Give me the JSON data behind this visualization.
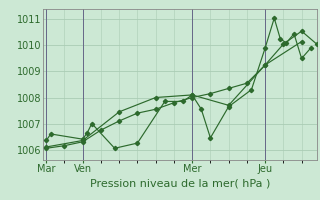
{
  "bg_color": "#cce8d4",
  "grid_color": "#aaccb4",
  "line_color": "#2d6a2d",
  "marker_color": "#2d6a2d",
  "ylabel_ticks": [
    1006,
    1007,
    1008,
    1009,
    1010,
    1011
  ],
  "ylim": [
    1005.6,
    1011.4
  ],
  "xlabel": "Pression niveau de la mer( hPa )",
  "day_labels": [
    "Mar",
    "Ven",
    "Mer",
    "Jeu"
  ],
  "day_positions": [
    0,
    24,
    96,
    144
  ],
  "xlim": [
    -2,
    178
  ],
  "series1_x": [
    0,
    3,
    24,
    27,
    30,
    45,
    60,
    78,
    90,
    96,
    102,
    108,
    120,
    135,
    144,
    150,
    154,
    158,
    163,
    168,
    174
  ],
  "series1_y": [
    1006.35,
    1006.6,
    1006.4,
    1006.65,
    1007.0,
    1006.05,
    1006.25,
    1007.85,
    1007.85,
    1008.1,
    1007.55,
    1006.45,
    1007.65,
    1008.3,
    1009.9,
    1011.05,
    1010.25,
    1010.1,
    1010.45,
    1009.5,
    1009.9
  ],
  "series2_x": [
    0,
    12,
    24,
    36,
    48,
    60,
    72,
    84,
    96,
    108,
    120,
    132,
    144,
    156,
    168,
    178
  ],
  "series2_y": [
    1006.05,
    1006.15,
    1006.3,
    1006.75,
    1007.1,
    1007.4,
    1007.55,
    1007.8,
    1008.0,
    1008.15,
    1008.35,
    1008.55,
    1009.25,
    1010.05,
    1010.55,
    1010.05
  ],
  "series3_x": [
    0,
    24,
    48,
    72,
    96,
    120,
    144,
    168
  ],
  "series3_y": [
    1006.1,
    1006.35,
    1007.45,
    1008.0,
    1008.1,
    1007.7,
    1009.25,
    1010.15
  ],
  "vline_color": "#666688",
  "xlabel_fontsize": 8,
  "ytick_fontsize": 7,
  "xtick_fontsize": 7
}
